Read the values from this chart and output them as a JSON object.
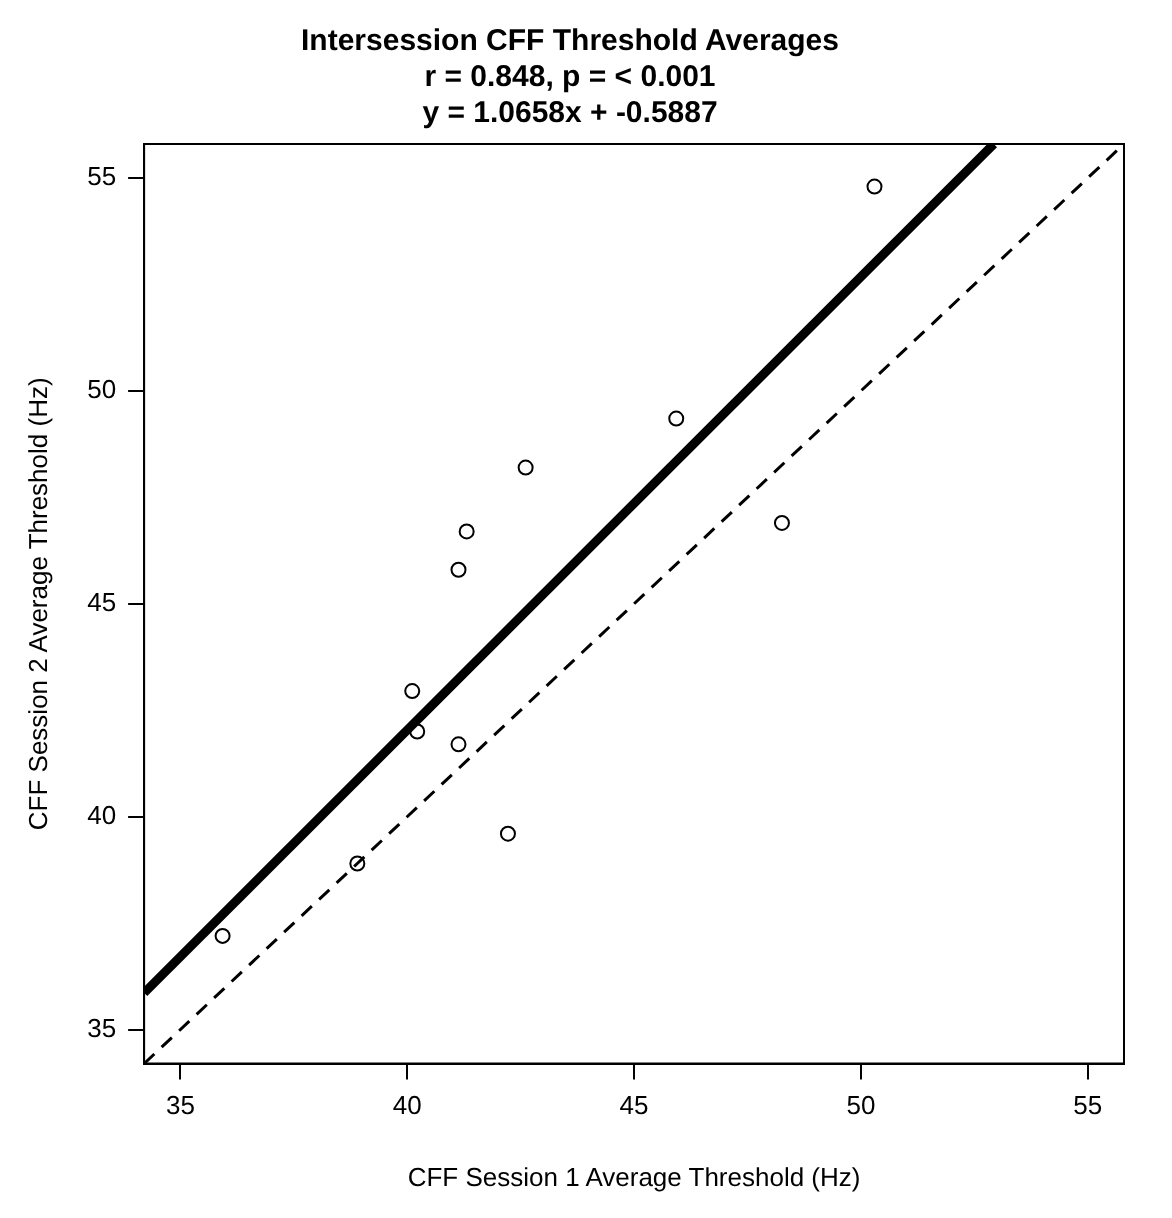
{
  "chart_data": {
    "type": "scatter",
    "title": "Intersession CFF Threshold Averages",
    "subtitle": "r = 0.848, p = < 0.001\ny = 1.0658x + -0.5887",
    "xlabel": "CFF Session 1 Average Threshold (Hz)",
    "ylabel": "CFF Session 2 Average Threshold (Hz)",
    "xlim": [
      34.2,
      55.8
    ],
    "ylim": [
      34.2,
      55.8
    ],
    "xticks": [
      35,
      40,
      45,
      50,
      55
    ],
    "yticks": [
      35,
      40,
      45,
      50,
      55
    ],
    "grid": false,
    "legend": false,
    "marker": "circle",
    "series": [
      {
        "type": "scatter",
        "color": "#000000",
        "x": [
          50.3,
          45.93,
          42.61,
          41.31,
          41.13,
          48.26,
          40.11,
          40.22,
          41.13,
          42.22,
          38.9,
          35.93
        ],
        "values": [
          54.8,
          49.35,
          48.2,
          46.7,
          45.8,
          46.9,
          42.95,
          42.0,
          41.7,
          39.6,
          38.9,
          37.2
        ]
      },
      {
        "type": "line",
        "color": "#000000",
        "line_style": "solid",
        "marker": "none",
        "x": [
          34.2,
          52.93
        ],
        "values": [
          35.86,
          55.8
        ]
      },
      {
        "type": "line",
        "color": "#000000",
        "line_style": "dashed",
        "marker": "none",
        "x": [
          34.2,
          55.8
        ],
        "values": [
          34.2,
          55.8
        ]
      }
    ]
  }
}
